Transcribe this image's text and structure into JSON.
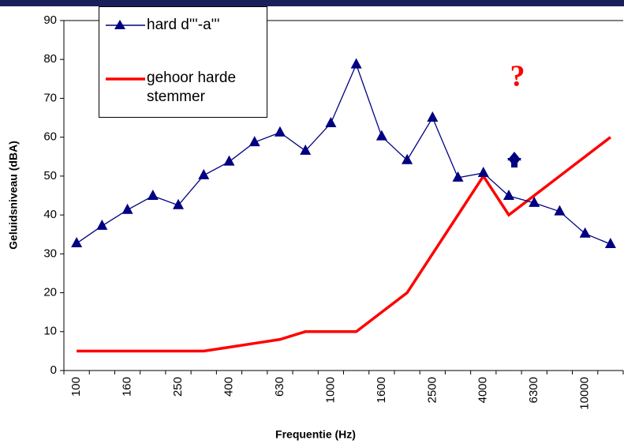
{
  "chart_data": {
    "type": "line",
    "x_label": "Frequentie (Hz)",
    "y_label": "Geluidsniveau (dBA)",
    "categories": [
      "100",
      null,
      "160",
      null,
      "250",
      null,
      "400",
      null,
      "630",
      null,
      "1000",
      null,
      "1600",
      null,
      "2500",
      null,
      "4000",
      null,
      "6300",
      null,
      "10000",
      null
    ],
    "series": [
      {
        "name": "hard d'''-a'''",
        "color": "#000080",
        "marker": "triangle",
        "values": [
          32.7,
          37.2,
          41.3,
          44.9,
          42.5,
          50.2,
          53.7,
          58.7,
          61.2,
          56.5,
          63.6,
          78.7,
          60.2,
          54.1,
          65,
          49.6,
          50.8,
          44.9,
          43.1,
          40.9,
          35.2,
          32.5
        ]
      },
      {
        "name": "gehoor harde stemmer",
        "color": "#ff0000",
        "marker": "none",
        "values": [
          5,
          5,
          5,
          5,
          5,
          5,
          6,
          7,
          8,
          10,
          10,
          10,
          15,
          20,
          30,
          40,
          50,
          40,
          45,
          50,
          55,
          60
        ]
      }
    ],
    "ylim": [
      0,
      90
    ],
    "yticks": [
      0,
      10,
      20,
      30,
      40,
      50,
      60,
      70,
      80,
      90
    ],
    "annotations": [
      {
        "text": "?",
        "color": "#ff0000"
      }
    ],
    "legend": "top-left"
  }
}
